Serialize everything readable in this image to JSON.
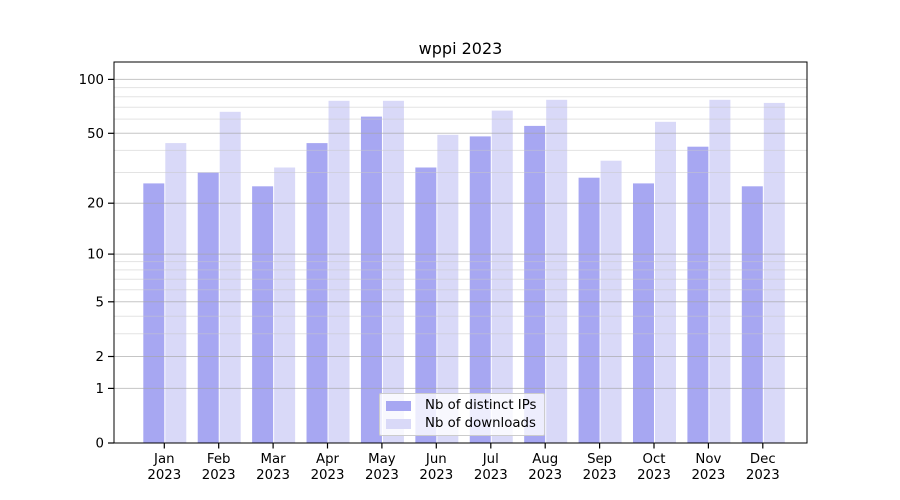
{
  "chart_data": {
    "type": "bar",
    "title": "wppi 2023",
    "categories": [
      "Jan",
      "Feb",
      "Mar",
      "Apr",
      "May",
      "Jun",
      "Jul",
      "Aug",
      "Sep",
      "Oct",
      "Nov",
      "Dec"
    ],
    "category_year": "2023",
    "series": [
      {
        "name": "Nb of distinct IPs",
        "color": "#a7a7f2",
        "values": [
          26,
          30,
          25,
          44,
          62,
          32,
          48,
          55,
          28,
          26,
          42,
          25
        ]
      },
      {
        "name": "Nb of downloads",
        "color": "#d9d9f8",
        "values": [
          44,
          66,
          32,
          76,
          76,
          49,
          67,
          77,
          35,
          58,
          77,
          74
        ]
      }
    ],
    "yscale": "log1p",
    "ylim": [
      0,
      125
    ],
    "yticks": [
      0,
      1,
      2,
      5,
      10,
      20,
      50,
      100
    ],
    "yticks_minor": [
      3,
      4,
      6,
      7,
      8,
      9,
      30,
      40,
      60,
      70,
      80,
      90
    ],
    "grid": "horizontal major and minor",
    "legend_position": "lower center"
  },
  "colors": {
    "background": "#ffffff",
    "axis": "#000000",
    "text": "#000000",
    "grid_major": "#a6a6a6",
    "grid_minor": "#c8c8c8",
    "legend_border": "#cccccc",
    "legend_background": "rgba(255,255,255,0.8)"
  }
}
